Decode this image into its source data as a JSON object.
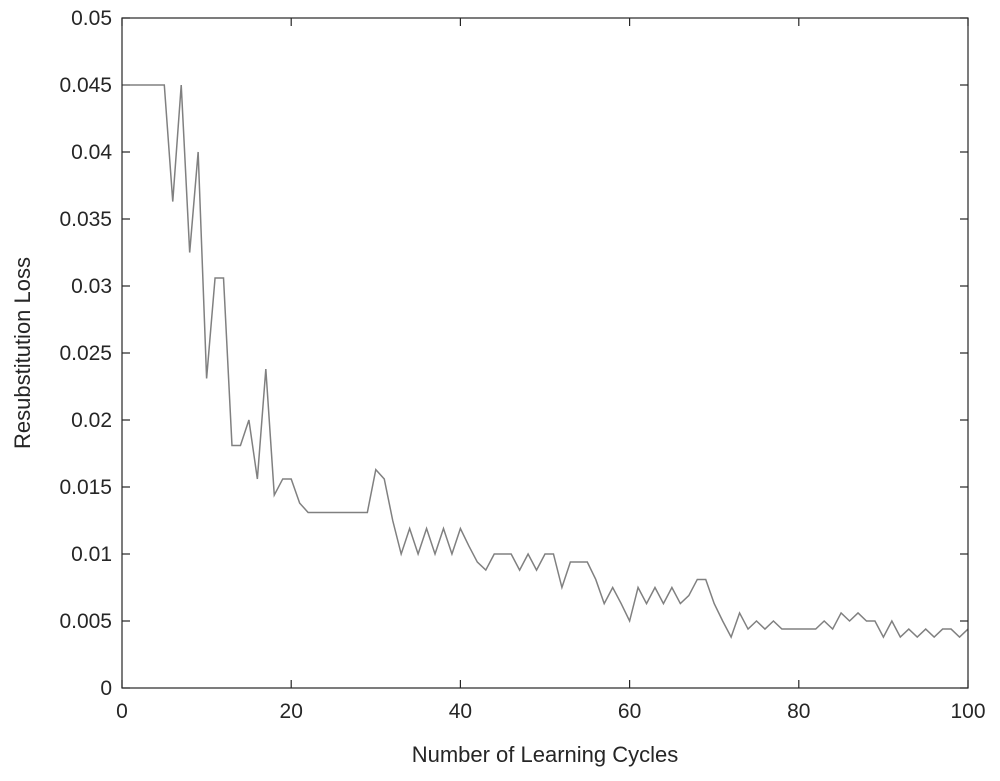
{
  "chart_data": {
    "type": "line",
    "title": "",
    "xlabel": "Number of Learning Cycles",
    "ylabel": "Resubstitution Loss",
    "xlim": [
      0,
      100
    ],
    "ylim": [
      0,
      0.05
    ],
    "xticks": [
      0,
      20,
      40,
      60,
      80,
      100
    ],
    "xtick_labels": [
      "0",
      "20",
      "40",
      "60",
      "80",
      "100"
    ],
    "yticks": [
      0,
      0.005,
      0.01,
      0.015,
      0.02,
      0.025,
      0.03,
      0.035,
      0.04,
      0.045,
      0.05
    ],
    "ytick_labels": [
      "0",
      "0.005",
      "0.01",
      "0.015",
      "0.02",
      "0.025",
      "0.03",
      "0.035",
      "0.04",
      "0.045",
      "0.05"
    ],
    "grid": false,
    "legend": "none",
    "line_color": "#808080",
    "series": [
      {
        "x": [
          1,
          2,
          3,
          4,
          5,
          6,
          7,
          8,
          9,
          10,
          11,
          12,
          13,
          14,
          15,
          16,
          17,
          18,
          19,
          20,
          21,
          22,
          23,
          24,
          25,
          26,
          27,
          28,
          29,
          30,
          31,
          32,
          33,
          34,
          35,
          36,
          37,
          38,
          39,
          40,
          41,
          42,
          43,
          44,
          45,
          46,
          47,
          48,
          49,
          50,
          51,
          52,
          53,
          54,
          55,
          56,
          57,
          58,
          59,
          60,
          61,
          62,
          63,
          64,
          65,
          66,
          67,
          68,
          69,
          70,
          71,
          72,
          73,
          74,
          75,
          76,
          77,
          78,
          79,
          80,
          81,
          82,
          83,
          84,
          85,
          86,
          87,
          88,
          89,
          90,
          91,
          92,
          93,
          94,
          95,
          96,
          97,
          98,
          99,
          100
        ],
        "values": [
          0.045,
          0.045,
          0.045,
          0.045,
          0.045,
          0.0363,
          0.045,
          0.0325,
          0.04,
          0.0231,
          0.0306,
          0.0306,
          0.0181,
          0.0181,
          0.02,
          0.0156,
          0.0238,
          0.0144,
          0.0156,
          0.0156,
          0.0138,
          0.0131,
          0.0131,
          0.0131,
          0.0131,
          0.0131,
          0.0131,
          0.0131,
          0.0131,
          0.0163,
          0.0156,
          0.0125,
          0.01,
          0.0119,
          0.01,
          0.0119,
          0.01,
          0.0119,
          0.01,
          0.0119,
          0.0106,
          0.0094,
          0.0088,
          0.01,
          0.01,
          0.01,
          0.0088,
          0.01,
          0.0088,
          0.01,
          0.01,
          0.0075,
          0.0094,
          0.0094,
          0.0094,
          0.0081,
          0.0063,
          0.0075,
          0.0063,
          0.005,
          0.0075,
          0.0063,
          0.0075,
          0.0063,
          0.0075,
          0.0063,
          0.0069,
          0.0081,
          0.0081,
          0.0063,
          0.005,
          0.0038,
          0.0056,
          0.0044,
          0.005,
          0.0044,
          0.005,
          0.0044,
          0.0044,
          0.0044,
          0.0044,
          0.0044,
          0.005,
          0.0044,
          0.0056,
          0.005,
          0.0056,
          0.005,
          0.005,
          0.0038,
          0.005,
          0.0038,
          0.0044,
          0.0038,
          0.0044,
          0.0038,
          0.0044,
          0.0044,
          0.0038,
          0.0044
        ]
      }
    ]
  }
}
